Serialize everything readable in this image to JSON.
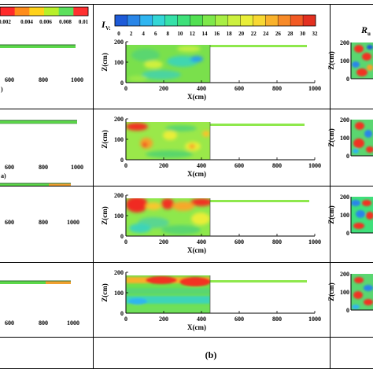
{
  "colorbar_left": {
    "ticks": [
      "0.002",
      "0.004",
      "0.006",
      "0.008",
      "0.01"
    ],
    "colors": [
      "#ff2a2a",
      "#ff8c1a",
      "#ffd21a",
      "#b8f02a",
      "#5ce05c",
      "#ff3030"
    ]
  },
  "colorbar_middle": {
    "symbol": "I",
    "symbol_sub": "V:",
    "ticks": [
      "0",
      "2",
      "4",
      "6",
      "8",
      "10",
      "12",
      "14",
      "16",
      "18",
      "20",
      "22",
      "24",
      "26",
      "28",
      "30",
      "32"
    ],
    "colors": [
      "#1e5bd8",
      "#2a86e8",
      "#2fb5f0",
      "#33d6d6",
      "#35e0a8",
      "#3ee07a",
      "#52e052",
      "#7ee84a",
      "#a8ee44",
      "#ccf03e",
      "#e9ee38",
      "#f8d832",
      "#f9b22c",
      "#f78a28",
      "#f25a24",
      "#e33020"
    ]
  },
  "colorbar_right": {
    "symbol": "R",
    "symbol_sub": "u"
  },
  "left_panels": [
    {
      "x_ticks": [
        "600",
        "800",
        "1000"
      ],
      "row_label": ")"
    },
    {
      "x_ticks": [
        "600",
        "800",
        "1000"
      ],
      "row_label": "a)"
    },
    {
      "x_ticks": [
        "600",
        "800",
        "1000"
      ],
      "row_label": ""
    },
    {
      "x_ticks": [
        "600",
        "800",
        "1000"
      ],
      "row_label": ""
    }
  ],
  "middle_axes": {
    "x_ticks": [
      "0",
      "200",
      "400",
      "600",
      "800",
      "1000"
    ],
    "y_ticks": [
      "0",
      "100",
      "200"
    ],
    "xlabel": "X(cm)",
    "ylabel": "Z(cm)"
  },
  "right_axes": {
    "y_ticks": [
      "0",
      "100",
      "200"
    ],
    "ylabel": "Z(cm)"
  },
  "caption_b": "(b)",
  "chart_data": {
    "type": "heatmap",
    "xlabel": "X(cm)",
    "ylabel": "Z(cm)",
    "xlim": [
      0,
      1000
    ],
    "ylim": [
      0,
      200
    ],
    "colorscale_range": [
      0,
      32
    ],
    "panels": [
      {
        "row": 1,
        "flume_top": 185
      },
      {
        "row": 2,
        "flume_top": 185
      },
      {
        "row": 3,
        "flume_top": 185
      },
      {
        "row": 4,
        "flume_top": 185
      }
    ]
  }
}
